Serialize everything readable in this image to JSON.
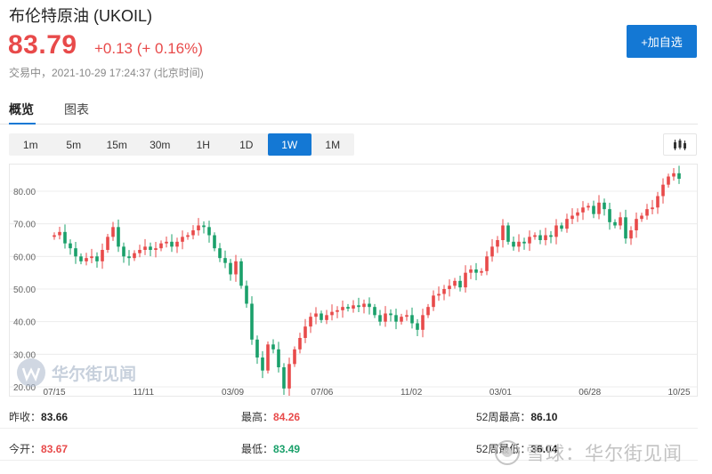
{
  "header": {
    "title": "布伦特原油 (UKOIL)",
    "price": "83.79",
    "change": "+0.13 (+ 0.16%)",
    "status": "交易中，2021-10-29 17:24:37 (北京时间)",
    "add_button": "+加自选"
  },
  "tabs": [
    {
      "label": "概览"
    },
    {
      "label": "图表"
    }
  ],
  "ranges": [
    "1m",
    "5m",
    "15m",
    "30m",
    "1H",
    "1D",
    "1W",
    "1M"
  ],
  "active_range": "1W",
  "colors": {
    "up": "#e84a4a",
    "down": "#1aa06a",
    "accent": "#1478d4"
  },
  "chart_data": {
    "type": "candlestick",
    "ylim": [
      20,
      86
    ],
    "y_ticks": [
      "80.00",
      "70.00",
      "60.00",
      "50.00",
      "40.00",
      "30.00",
      "20.00"
    ],
    "x_ticks": [
      "07/15",
      "11/11",
      "03/09",
      "07/06",
      "11/02",
      "03/01",
      "06/28",
      "10/25"
    ],
    "weekly_closes": [
      66.5,
      67.5,
      64.0,
      62.5,
      60.0,
      58.5,
      59.5,
      60.0,
      58.5,
      62.0,
      66.0,
      69.0,
      63.0,
      60.0,
      59.5,
      61.0,
      62.0,
      63.0,
      62.0,
      62.5,
      64.0,
      64.5,
      63.0,
      64.5,
      66.0,
      66.5,
      68.0,
      69.5,
      69.0,
      66.5,
      62.5,
      59.5,
      58.0,
      54.5,
      58.5,
      51.0,
      45.5,
      34.5,
      29.0,
      25.0,
      33.0,
      31.5,
      26.0,
      19.5,
      27.0,
      31.5,
      35.0,
      38.5,
      41.5,
      42.5,
      40.5,
      42.0,
      43.0,
      43.5,
      44.5,
      44.0,
      45.0,
      44.5,
      45.5,
      44.5,
      42.0,
      40.0,
      42.5,
      42.0,
      40.0,
      41.5,
      42.0,
      39.5,
      37.5,
      42.0,
      44.5,
      48.0,
      48.5,
      50.0,
      51.0,
      52.5,
      50.5,
      55.0,
      56.0,
      55.0,
      55.5,
      60.0,
      63.0,
      65.0,
      69.5,
      64.5,
      63.0,
      64.5,
      64.0,
      66.0,
      66.5,
      65.0,
      66.5,
      66.0,
      69.5,
      68.5,
      71.5,
      72.5,
      73.5,
      75.0,
      75.5,
      73.0,
      76.5,
      74.5,
      70.5,
      69.5,
      72.0,
      65.5,
      68.0,
      71.5,
      72.5,
      74.5,
      75.0,
      78.5,
      82.0,
      84.5,
      85.5,
      83.8
    ]
  },
  "stats": {
    "prev_close_label": "昨收：",
    "prev_close": "83.66",
    "high_label": "最高：",
    "high": "84.26",
    "high52_label": "52周最高：",
    "high52": "86.10",
    "open_label": "今开：",
    "open": "83.67",
    "low_label": "最低：",
    "low": "83.49",
    "low52_label": "52周最低：",
    "low52": "36.04"
  },
  "watermarks": {
    "chart_logo_text": "华尔街见闻",
    "footer_text": "雪球：华尔街见闻"
  }
}
